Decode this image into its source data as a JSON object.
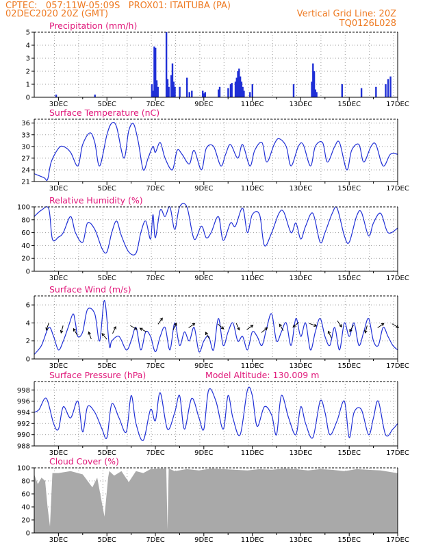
{
  "header": {
    "line1": "CPTEC:   057:11W-05:09S   PROX01: ITAITUBA (PA)",
    "line2": "02DEC2020 20Z (GMT)",
    "grid_note": "Vertical Grid Line: 20Z",
    "code": "TQ0126L028"
  },
  "colors": {
    "header": "#ee7a22",
    "title": "#e0187a",
    "series": "#1f2fd6",
    "cloud": "#a9a9a9"
  },
  "x_axis_labels": [
    "3DEC",
    "5DEC",
    "7DEC",
    "9DEC",
    "11DEC",
    "13DEC",
    "15DEC",
    "17DEC"
  ],
  "chart_data": [
    {
      "id": "precip",
      "type": "bar",
      "title": "Precipitation (mm/h)",
      "ylim": [
        0,
        5
      ],
      "yticks": [
        "0",
        "1",
        "2",
        "3",
        "4",
        "5"
      ],
      "grid": true,
      "x": [
        2.9,
        4.5,
        6.85,
        6.9,
        6.95,
        7.0,
        7.05,
        7.1,
        7.45,
        7.5,
        7.55,
        7.65,
        7.7,
        7.75,
        7.8,
        8.0,
        8.3,
        8.4,
        8.5,
        8.95,
        9.0,
        9.05,
        9.6,
        9.65,
        10.0,
        10.1,
        10.15,
        10.3,
        10.35,
        10.4,
        10.45,
        10.5,
        10.55,
        10.6,
        10.65,
        10.9,
        11.0,
        12.7,
        13.45,
        13.5,
        13.55,
        13.6,
        13.65,
        14.7,
        15.5,
        16.1,
        16.5,
        16.6,
        16.7
      ],
      "values": [
        0.2,
        0.2,
        1.0,
        0.5,
        3.9,
        3.8,
        1.3,
        0.8,
        5.0,
        1.4,
        0.8,
        1.7,
        2.6,
        1.2,
        0.8,
        0.8,
        1.5,
        0.4,
        0.5,
        0.5,
        0.3,
        0.4,
        0.6,
        0.8,
        0.7,
        1.0,
        1.1,
        1.2,
        1.5,
        2.0,
        2.2,
        1.6,
        1.2,
        0.8,
        0.5,
        0.4,
        1.0,
        1.0,
        1.2,
        2.6,
        2.0,
        0.6,
        0.4,
        1.0,
        0.7,
        0.8,
        1.0,
        1.4,
        1.6
      ]
    },
    {
      "id": "temp",
      "type": "line",
      "title": "Surface Temperature (nC)",
      "ylim": [
        21,
        37
      ],
      "yticks": [
        "21",
        "24",
        "27",
        "30",
        "33",
        "36"
      ],
      "grid": true,
      "x": [
        2.0,
        2.4,
        2.55,
        2.7,
        3.0,
        3.2,
        3.5,
        3.8,
        4.0,
        4.3,
        4.5,
        4.7,
        5.0,
        5.2,
        5.4,
        5.7,
        5.9,
        6.1,
        6.3,
        6.5,
        6.7,
        6.9,
        7.0,
        7.2,
        7.4,
        7.7,
        7.9,
        8.1,
        8.4,
        8.6,
        8.9,
        9.1,
        9.4,
        9.7,
        9.9,
        10.1,
        10.4,
        10.6,
        10.9,
        11.1,
        11.4,
        11.6,
        11.9,
        12.1,
        12.4,
        12.6,
        12.9,
        13.1,
        13.4,
        13.6,
        13.9,
        14.1,
        14.4,
        14.6,
        14.9,
        15.1,
        15.4,
        15.6,
        15.9,
        16.1,
        16.4,
        16.7,
        17.0
      ],
      "values": [
        23,
        22,
        21.5,
        26,
        29.5,
        30,
        28.5,
        25,
        30.5,
        33.5,
        31,
        25,
        33,
        36,
        35,
        27,
        34,
        35.8,
        31,
        24,
        27,
        30,
        28.5,
        31,
        27,
        24,
        29,
        28,
        25.5,
        29,
        24,
        29.5,
        30,
        25,
        28,
        30.5,
        27,
        30.5,
        25,
        29,
        31,
        26,
        30.5,
        32,
        30,
        25,
        30,
        30.5,
        25,
        30,
        31,
        26,
        30,
        31,
        24,
        29,
        30.5,
        26,
        30,
        30.5,
        25,
        28,
        28
      ]
    },
    {
      "id": "rh",
      "type": "line",
      "title": "Relative Humidity (%)",
      "ylim": [
        0,
        100
      ],
      "yticks": [
        "0",
        "20",
        "40",
        "60",
        "80",
        "100"
      ],
      "grid": true,
      "x": [
        2.0,
        2.3,
        2.6,
        2.75,
        3.0,
        3.2,
        3.5,
        3.7,
        4.0,
        4.2,
        4.5,
        4.8,
        5.0,
        5.2,
        5.4,
        5.6,
        5.9,
        6.2,
        6.4,
        6.6,
        6.8,
        6.9,
        7.0,
        7.2,
        7.4,
        7.6,
        7.8,
        8.0,
        8.3,
        8.6,
        8.9,
        9.1,
        9.3,
        9.6,
        9.8,
        10.1,
        10.3,
        10.6,
        10.8,
        11.0,
        11.3,
        11.5,
        11.8,
        12.1,
        12.3,
        12.6,
        12.8,
        13.0,
        13.2,
        13.5,
        13.8,
        14.0,
        14.3,
        14.5,
        14.8,
        15.0,
        15.3,
        15.5,
        15.8,
        16.0,
        16.3,
        16.6,
        17.0
      ],
      "values": [
        85,
        95,
        97,
        50,
        53,
        60,
        85,
        60,
        45,
        75,
        65,
        35,
        30,
        60,
        78,
        55,
        30,
        28,
        60,
        78,
        50,
        88,
        52,
        95,
        85,
        100,
        65,
        100,
        100,
        50,
        70,
        52,
        60,
        85,
        48,
        75,
        70,
        98,
        60,
        88,
        88,
        40,
        60,
        90,
        92,
        60,
        75,
        50,
        70,
        90,
        45,
        60,
        90,
        98,
        55,
        45,
        85,
        92,
        55,
        75,
        90,
        60,
        67
      ]
    },
    {
      "id": "wind",
      "type": "line",
      "title": "Surface Wind (m/s)",
      "ylim": [
        0,
        7
      ],
      "yticks": [
        "0",
        "2",
        "4",
        "6"
      ],
      "grid": true,
      "note": "speed series with wind-direction arrows",
      "x": [
        2.0,
        2.3,
        2.6,
        2.8,
        3.0,
        3.2,
        3.4,
        3.6,
        3.7,
        3.8,
        4.0,
        4.2,
        4.5,
        4.7,
        4.9,
        5.1,
        5.2,
        5.5,
        5.8,
        6.0,
        6.2,
        6.4,
        6.6,
        6.8,
        7.0,
        7.2,
        7.4,
        7.6,
        7.8,
        8.0,
        8.2,
        8.4,
        8.6,
        8.8,
        9.0,
        9.2,
        9.4,
        9.6,
        9.8,
        10.0,
        10.2,
        10.4,
        10.6,
        10.8,
        11.0,
        11.2,
        11.4,
        11.6,
        11.8,
        12.0,
        12.2,
        12.4,
        12.6,
        12.8,
        13.0,
        13.2,
        13.4,
        13.6,
        13.8,
        14.0,
        14.2,
        14.4,
        14.6,
        14.8,
        15.0,
        15.2,
        15.4,
        15.6,
        15.8,
        16.0,
        16.2,
        16.4,
        16.6,
        16.8,
        17.0
      ],
      "values": [
        0.5,
        1.5,
        3.5,
        2.5,
        1.0,
        2.0,
        3.5,
        5.0,
        4.0,
        2.5,
        3.0,
        5.5,
        5.0,
        2.0,
        6.5,
        1.5,
        2.0,
        2.5,
        1.0,
        2.0,
        3.5,
        1.0,
        3.0,
        2.5,
        0.8,
        2.5,
        3.5,
        1.0,
        4.0,
        1.5,
        3.0,
        2.0,
        3.5,
        0.8,
        2.0,
        2.5,
        1.0,
        4.5,
        1.5,
        3.0,
        4.0,
        2.0,
        2.5,
        1.0,
        3.0,
        2.5,
        1.5,
        3.5,
        5.0,
        2.0,
        3.0,
        4.0,
        1.5,
        4.5,
        2.5,
        4.0,
        1.0,
        3.0,
        4.5,
        2.5,
        1.5,
        3.5,
        1.0,
        4.0,
        2.5,
        4.0,
        1.5,
        3.0,
        4.5,
        2.0,
        1.5,
        3.5,
        2.5,
        1.5,
        1.0
      ],
      "arrows": [
        {
          "x": 2.55,
          "y": 3.6,
          "dir": 200
        },
        {
          "x": 3.15,
          "y": 3.3,
          "dir": 195
        },
        {
          "x": 3.7,
          "y": 3.0,
          "dir": 330
        },
        {
          "x": 4.3,
          "y": 2.6,
          "dir": 340
        },
        {
          "x": 4.9,
          "y": 2.5,
          "dir": 320
        },
        {
          "x": 5.3,
          "y": 3.2,
          "dir": 25
        },
        {
          "x": 6.1,
          "y": 3.5,
          "dir": 120
        },
        {
          "x": 6.5,
          "y": 3.2,
          "dir": 300
        },
        {
          "x": 7.2,
          "y": 4.2,
          "dir": 35
        },
        {
          "x": 7.8,
          "y": 3.6,
          "dir": 25
        },
        {
          "x": 8.5,
          "y": 3.7,
          "dir": 55
        },
        {
          "x": 9.15,
          "y": 2.6,
          "dir": 330
        },
        {
          "x": 9.7,
          "y": 3.6,
          "dir": 130
        },
        {
          "x": 10.4,
          "y": 3.6,
          "dir": 155
        },
        {
          "x": 10.9,
          "y": 3.5,
          "dir": 55
        },
        {
          "x": 11.5,
          "y": 3.2,
          "dir": 50
        },
        {
          "x": 12.2,
          "y": 3.5,
          "dir": 330
        },
        {
          "x": 12.8,
          "y": 3.8,
          "dir": 230
        },
        {
          "x": 13.5,
          "y": 3.8,
          "dir": 110
        },
        {
          "x": 14.2,
          "y": 2.7,
          "dir": 335
        },
        {
          "x": 14.6,
          "y": 3.9,
          "dir": 145
        },
        {
          "x": 15.1,
          "y": 3.4,
          "dir": 210
        },
        {
          "x": 15.7,
          "y": 3.3,
          "dir": 195
        },
        {
          "x": 16.3,
          "y": 3.7,
          "dir": 55
        },
        {
          "x": 16.9,
          "y": 3.7,
          "dir": 120
        }
      ]
    },
    {
      "id": "press",
      "type": "line",
      "title": "Surface Pressure (hPa)",
      "subtitle": "Model Altitude: 130.009 m",
      "ylim": [
        988,
        999.5
      ],
      "yticks": [
        "988",
        "990",
        "992",
        "994",
        "996",
        "998"
      ],
      "grid": true,
      "x": [
        2.0,
        2.2,
        2.5,
        2.8,
        3.0,
        3.2,
        3.5,
        3.8,
        4.0,
        4.2,
        4.5,
        4.8,
        5.0,
        5.2,
        5.5,
        5.8,
        6.0,
        6.2,
        6.5,
        6.8,
        7.0,
        7.2,
        7.5,
        7.8,
        8.0,
        8.2,
        8.5,
        8.8,
        9.0,
        9.2,
        9.5,
        9.8,
        10.0,
        10.2,
        10.5,
        10.8,
        11.0,
        11.2,
        11.5,
        11.8,
        12.0,
        12.2,
        12.5,
        12.8,
        13.0,
        13.2,
        13.5,
        13.8,
        14.0,
        14.2,
        14.5,
        14.8,
        15.0,
        15.2,
        15.5,
        15.8,
        16.0,
        16.2,
        16.5,
        16.8,
        17.0
      ],
      "values": [
        994,
        994.5,
        996.5,
        992,
        991,
        995,
        993,
        996,
        990.5,
        995,
        994,
        991,
        989.5,
        995.5,
        993,
        990.5,
        997,
        992,
        989,
        994.5,
        992.5,
        997.5,
        991,
        994,
        997,
        991,
        996.5,
        993,
        991,
        998,
        996,
        991,
        997,
        993,
        990,
        998,
        997,
        991.5,
        995,
        993.5,
        990,
        997,
        993,
        990,
        995,
        992,
        989.5,
        996,
        994,
        990,
        992.5,
        996,
        989.5,
        994,
        994.5,
        990,
        993,
        996,
        990,
        991,
        992
      ]
    },
    {
      "id": "cloud",
      "type": "area",
      "title": "Cloud Cover (%)",
      "ylim": [
        0,
        100
      ],
      "yticks": [
        "0",
        "20",
        "40",
        "60",
        "80",
        "100"
      ],
      "grid": true,
      "x": [
        2.0,
        2.15,
        2.3,
        2.45,
        2.55,
        2.65,
        2.75,
        3.0,
        3.5,
        4.0,
        4.4,
        4.6,
        4.9,
        4.95,
        5.05,
        5.1,
        5.3,
        5.6,
        5.9,
        6.2,
        6.5,
        6.8,
        7.2,
        7.45,
        7.5,
        7.55,
        7.8,
        8.3,
        8.8,
        9.3,
        9.8,
        10.3,
        10.8,
        11.3,
        11.8,
        12.3,
        12.8,
        13.3,
        13.8,
        14.3,
        14.8,
        15.3,
        15.8,
        16.3,
        16.8,
        17.0
      ],
      "values": [
        90,
        75,
        85,
        80,
        40,
        10,
        92,
        92,
        95,
        90,
        70,
        85,
        25,
        45,
        85,
        95,
        88,
        95,
        78,
        95,
        92,
        98,
        99,
        99,
        5,
        99,
        95,
        98,
        96,
        99,
        98,
        97,
        96,
        98,
        97,
        99,
        98,
        96,
        98,
        97,
        95,
        98,
        97,
        96,
        93,
        92
      ]
    }
  ]
}
